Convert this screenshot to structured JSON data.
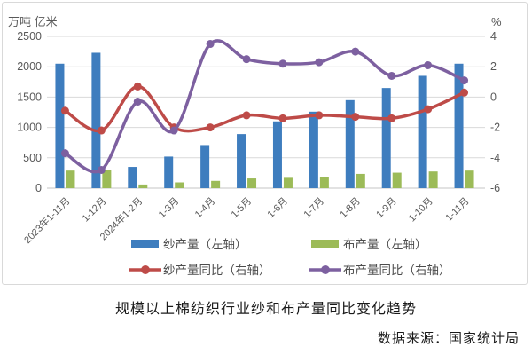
{
  "title": "规模以上棉纺织行业纱和布产量同比变化趋势",
  "source": "数据来源：国家统计局",
  "chart_data": {
    "type": "bar+line",
    "categories": [
      "2023年1-11月",
      "1-12月",
      "2024年1-2月",
      "1-3月",
      "1-4月",
      "1-5月",
      "1-6月",
      "1-7月",
      "1-8月",
      "1-9月",
      "1-10月",
      "1-11月"
    ],
    "left_axis": {
      "title": "万吨 亿米",
      "min": 0,
      "max": 2500,
      "ticks": [
        "2500",
        "2000",
        "1500",
        "1000",
        "500",
        "0"
      ]
    },
    "right_axis": {
      "title": "%",
      "min": -6,
      "max": 4,
      "ticks": [
        "4",
        "2",
        "0",
        "-2",
        "-4",
        "-6"
      ]
    },
    "grid": true,
    "legend_position": "bottom",
    "series": [
      {
        "name": "纱产量（左轴）",
        "type": "bar",
        "axis": "left",
        "color": "#3E7DBE",
        "values": [
          2050,
          2230,
          350,
          520,
          710,
          890,
          1100,
          1260,
          1450,
          1650,
          1850,
          2050
        ]
      },
      {
        "name": "布产量（左轴）",
        "type": "bar",
        "axis": "left",
        "color": "#9CBB58",
        "values": [
          290,
          305,
          60,
          95,
          120,
          160,
          170,
          190,
          235,
          255,
          275,
          290
        ]
      },
      {
        "name": "纱产量同比（右轴）",
        "type": "line",
        "axis": "right",
        "color": "#BE4B48",
        "values": [
          -0.9,
          -2.2,
          0.7,
          -2.0,
          -2.0,
          -1.2,
          -1.4,
          -1.2,
          -1.3,
          -1.4,
          -0.8,
          0.3
        ]
      },
      {
        "name": "布产量同比（右轴）",
        "type": "line",
        "axis": "right",
        "color": "#7D60A0",
        "values": [
          -3.7,
          -4.8,
          -0.3,
          -2.2,
          3.5,
          2.5,
          2.2,
          2.3,
          3.0,
          1.4,
          2.1,
          1.1
        ]
      }
    ],
    "text_color": "#595959",
    "grid_color": "#d9d9d9"
  }
}
